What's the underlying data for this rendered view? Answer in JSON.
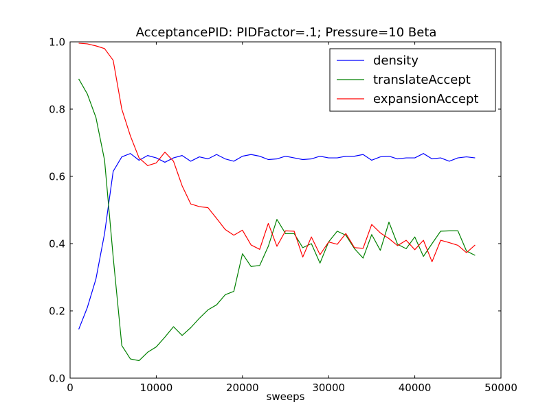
{
  "chart_data": {
    "type": "line",
    "title": "AcceptancePID: PIDFactor=.1; Pressure=10 Beta",
    "xlabel": "sweeps",
    "ylabel": "",
    "xlim": [
      0,
      50000
    ],
    "ylim": [
      0.0,
      1.0
    ],
    "xticks": [
      0,
      10000,
      20000,
      30000,
      40000,
      50000
    ],
    "xtick_labels": [
      "0",
      "10000",
      "20000",
      "30000",
      "40000",
      "50000"
    ],
    "yticks": [
      0.0,
      0.2,
      0.4,
      0.6,
      0.8,
      1.0
    ],
    "ytick_labels": [
      "0.0",
      "0.2",
      "0.4",
      "0.6",
      "0.8",
      "1.0"
    ],
    "grid": false,
    "legend": "top-right",
    "x": [
      1000,
      2000,
      3000,
      4000,
      5000,
      6000,
      7000,
      8000,
      9000,
      10000,
      11000,
      12000,
      13000,
      14000,
      15000,
      16000,
      17000,
      18000,
      19000,
      20000,
      21000,
      22000,
      23000,
      24000,
      25000,
      26000,
      27000,
      28000,
      29000,
      30000,
      31000,
      32000,
      33000,
      34000,
      35000,
      36000,
      37000,
      38000,
      39000,
      40000,
      41000,
      42000,
      43000,
      44000,
      45000,
      46000,
      47000
    ],
    "series": [
      {
        "name": "density",
        "color": "#0000ff",
        "values": [
          0.145,
          0.21,
          0.295,
          0.43,
          0.615,
          0.658,
          0.668,
          0.648,
          0.662,
          0.655,
          0.642,
          0.655,
          0.662,
          0.645,
          0.658,
          0.652,
          0.665,
          0.652,
          0.645,
          0.66,
          0.665,
          0.66,
          0.65,
          0.652,
          0.66,
          0.655,
          0.65,
          0.652,
          0.66,
          0.655,
          0.655,
          0.66,
          0.66,
          0.665,
          0.648,
          0.658,
          0.66,
          0.652,
          0.655,
          0.655,
          0.668,
          0.652,
          0.655,
          0.645,
          0.655,
          0.658,
          0.655
        ]
      },
      {
        "name": "translateAccept",
        "color": "#008000",
        "values": [
          0.89,
          0.845,
          0.775,
          0.648,
          0.36,
          0.097,
          0.057,
          0.052,
          0.077,
          0.093,
          0.122,
          0.153,
          0.127,
          0.15,
          0.178,
          0.203,
          0.218,
          0.248,
          0.258,
          0.37,
          0.332,
          0.335,
          0.392,
          0.472,
          0.43,
          0.43,
          0.388,
          0.4,
          0.342,
          0.405,
          0.437,
          0.425,
          0.385,
          0.357,
          0.427,
          0.38,
          0.464,
          0.398,
          0.385,
          0.42,
          0.362,
          0.4,
          0.437,
          0.438,
          0.438,
          0.378,
          0.365
        ]
      },
      {
        "name": "expansionAccept",
        "color": "#ff0000",
        "values": [
          0.996,
          0.994,
          0.988,
          0.98,
          0.945,
          0.8,
          0.72,
          0.655,
          0.632,
          0.64,
          0.672,
          0.645,
          0.572,
          0.518,
          0.51,
          0.507,
          0.475,
          0.442,
          0.425,
          0.44,
          0.396,
          0.383,
          0.46,
          0.392,
          0.438,
          0.437,
          0.36,
          0.42,
          0.367,
          0.405,
          0.398,
          0.43,
          0.388,
          0.386,
          0.457,
          0.432,
          0.415,
          0.394,
          0.41,
          0.382,
          0.41,
          0.346,
          0.41,
          0.403,
          0.395,
          0.373,
          0.396
        ]
      }
    ]
  }
}
